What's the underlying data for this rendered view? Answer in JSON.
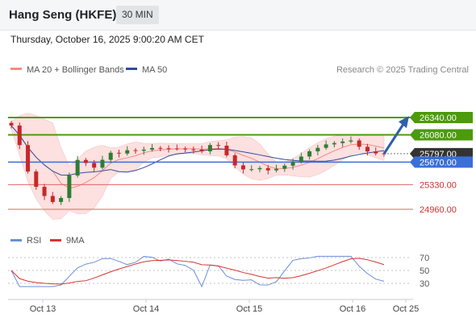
{
  "header": {
    "title": "Hang Seng (HKFE)",
    "timeframe": "30 MIN",
    "datetime": "Thursday, October 16, 2025 9:00:20 AM CET"
  },
  "legend": {
    "ma20": "MA 20 + Bollinger Bands",
    "ma50": "MA 50",
    "credit": "Research © 2025 Trading Central",
    "rsi": "RSI",
    "ma9": "9MA"
  },
  "colors": {
    "up_candle": "#2e7d32",
    "down_candle": "#c62828",
    "bollinger_fill": "#fde0e0",
    "ma20": "#f28b82",
    "ma50": "#2e4d9a",
    "resistance": "#4c9a0e",
    "pivot": "#3a6fd8",
    "support": "#e06666",
    "arrow": "#2e5fa8",
    "rsi": "#6a8ed8",
    "rsi_ma": "#d83333",
    "current_price_tag": "#333333"
  },
  "chart_data": [
    {
      "type": "candlestick",
      "x": [
        "Oct 13",
        "Oct 14",
        "Oct 15",
        "Oct 16",
        "Oct 25"
      ],
      "y_levels": {
        "resistance": [
          26340.0,
          26080.0
        ],
        "pivot": 25670.0,
        "support": [
          25330.0,
          24960.0
        ],
        "current_price": 25797.0
      },
      "price_labels": [
        "26340.00",
        "26080.00",
        "25797.00",
        "25670.00",
        "25330.00",
        "24960.00"
      ],
      "ylim": [
        24960,
        26340
      ],
      "forecast": "up toward 26340",
      "series": [
        {
          "name": "MA 20 + Bollinger Bands"
        },
        {
          "name": "MA 50"
        }
      ]
    },
    {
      "type": "line",
      "x": [
        "Oct 13",
        "Oct 14",
        "Oct 15",
        "Oct 16",
        "Oct 25"
      ],
      "y_ticks": [
        70,
        50,
        30
      ],
      "ylim": [
        20,
        80
      ],
      "series": [
        {
          "name": "RSI"
        },
        {
          "name": "9MA"
        }
      ]
    }
  ]
}
